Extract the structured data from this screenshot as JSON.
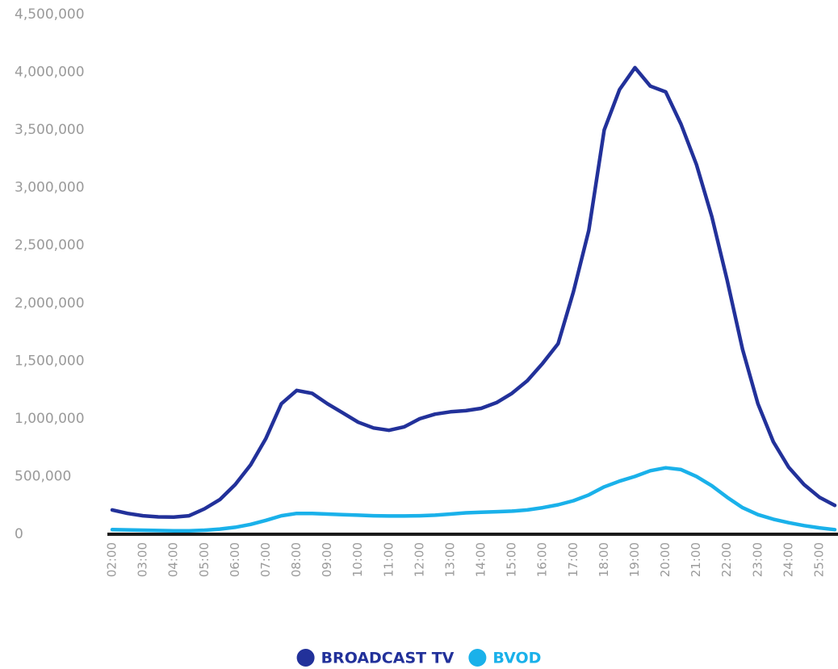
{
  "chart_data": {
    "type": "line",
    "categories": [
      "02:00",
      null,
      "03:00",
      null,
      "04:00",
      null,
      "05:00",
      null,
      "06:00",
      null,
      "07:00",
      null,
      "08:00",
      null,
      "09:00",
      null,
      "10:00",
      null,
      "11:00",
      null,
      "12:00",
      null,
      "13:00",
      null,
      "14:00",
      null,
      "15:00",
      null,
      "16:00",
      null,
      "17:00",
      null,
      "18:00",
      null,
      "19:00",
      null,
      "20:00",
      null,
      "21:00",
      null,
      "22:00",
      null,
      "23:00",
      null,
      "24:00",
      null,
      "25:00",
      null
    ],
    "series": [
      {
        "name": "BROADCAST TV",
        "color": "#22319a",
        "values": [
          210000,
          180000,
          160000,
          150000,
          148000,
          160000,
          220000,
          300000,
          430000,
          600000,
          830000,
          1130000,
          1245000,
          1220000,
          1130000,
          1050000,
          970000,
          920000,
          900000,
          930000,
          1000000,
          1040000,
          1060000,
          1070000,
          1090000,
          1140000,
          1220000,
          1330000,
          1480000,
          1650000,
          2100000,
          2630000,
          3500000,
          3850000,
          4040000,
          3880000,
          3830000,
          3550000,
          3200000,
          2750000,
          2200000,
          1600000,
          1130000,
          800000,
          580000,
          430000,
          320000,
          250000
        ]
      },
      {
        "name": "BVOD",
        "color": "#1ab1ea",
        "values": [
          40000,
          38000,
          35000,
          32000,
          30000,
          30000,
          35000,
          45000,
          60000,
          85000,
          120000,
          160000,
          180000,
          180000,
          175000,
          170000,
          165000,
          160000,
          158000,
          158000,
          160000,
          165000,
          175000,
          185000,
          190000,
          195000,
          200000,
          210000,
          230000,
          255000,
          290000,
          340000,
          410000,
          460000,
          500000,
          550000,
          575000,
          560000,
          500000,
          420000,
          320000,
          230000,
          170000,
          130000,
          100000,
          75000,
          55000,
          40000
        ]
      }
    ],
    "ylim": [
      0,
      4500000
    ],
    "yticks": [
      0,
      {
        "value": 500000,
        "label": "500,000"
      },
      {
        "value": 1000000,
        "label": "1,000,000"
      },
      {
        "value": 1500000,
        "label": "1,500,000"
      },
      {
        "value": 2000000,
        "label": "2,000,000"
      },
      {
        "value": 2500000,
        "label": "2,500,000"
      },
      {
        "value": 3000000,
        "label": "3,000,000"
      },
      {
        "value": 3500000,
        "label": "3,500,000"
      },
      {
        "value": 4000000,
        "label": "4,000,000"
      },
      {
        "value": 4500000,
        "label": "4,500,000"
      }
    ],
    "grid": false,
    "legend": "bottom"
  }
}
